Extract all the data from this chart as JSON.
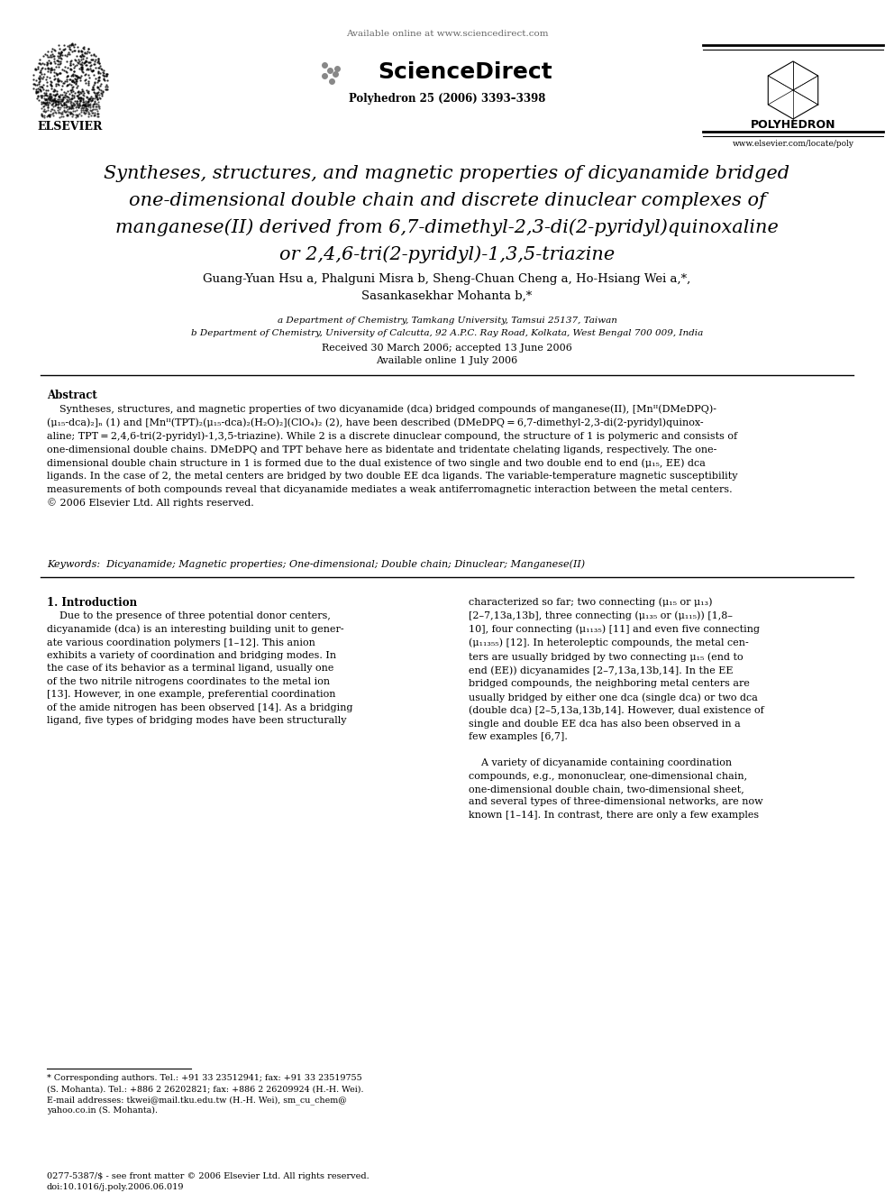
{
  "bg_color": "#ffffff",
  "header": {
    "available_online": "Available online at www.sciencedirect.com",
    "journal_cite": "Polyhedron 25 (2006) 3393–3398",
    "journal_name": "POLYHEDRON",
    "journal_url": "www.elsevier.com/locate/poly",
    "publisher": "ELSEVIER"
  },
  "title_lines": [
    "Syntheses, structures, and magnetic properties of dicyanamide bridged",
    "one-dimensional double chain and discrete dinuclear complexes of",
    "manganese(II) derived from 6,7-dimethyl-2,3-di(2-pyridyl)quinoxaline",
    "or 2,4,6-tri(2-pyridyl)-1,3,5-triazine"
  ],
  "authors_line1": "Guang-Yuan Hsu a, Phalguni Misra b, Sheng-Chuan Cheng a, Ho-Hsiang Wei a,*,",
  "authors_line2": "Sasankasekhar Mohanta b,*",
  "affil_a": "a Department of Chemistry, Tamkang University, Tamsui 25137, Taiwan",
  "affil_b": "b Department of Chemistry, University of Calcutta, 92 A.P.C. Ray Road, Kolkata, West Bengal 700 009, India",
  "received": "Received 30 March 2006; accepted 13 June 2006",
  "available_online2": "Available online 1 July 2006",
  "abstract_title": "Abstract",
  "keywords_text": "Keywords:  Dicyanamide; Magnetic properties; One-dimensional; Double chain; Dinuclear; Manganese(II)",
  "intro_title": "1. Introduction",
  "footnote1": "* Corresponding authors. Tel.: +91 33 23512941; fax: +91 33 23519755",
  "footnote2": "(S. Mohanta). Tel.: +886 2 26202821; fax: +886 2 26209924 (H.-H. Wei).",
  "footnote3": "E-mail addresses: tkwei@mail.tku.edu.tw (H.-H. Wei), sm_cu_chem@",
  "footnote4": "yahoo.co.in (S. Mohanta).",
  "copyright1": "0277-5387/$ - see front matter © 2006 Elsevier Ltd. All rights reserved.",
  "copyright2": "doi:10.1016/j.poly.2006.06.019",
  "sdirect": "ScienceDirect"
}
